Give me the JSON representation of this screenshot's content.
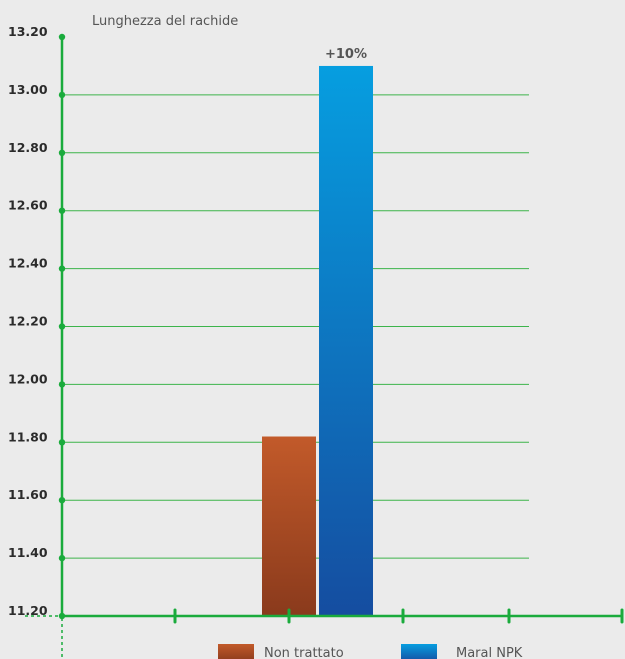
{
  "chart_data": {
    "type": "bar",
    "title": "Lunghezza del rachide",
    "categories": [
      "Non trattato",
      "Maral NPK"
    ],
    "values": [
      11.82,
      13.1
    ],
    "colors": {
      "Non trattato": [
        "#c25a2a",
        "#8a3a1c"
      ],
      "Maral NPK": [
        "#069ee0",
        "#154da0"
      ],
      "axis": "#1aab3c",
      "grid": "#3cb44b"
    },
    "ylim": [
      11.2,
      13.2
    ],
    "yticks": [
      "11.20",
      "11.40",
      "11.60",
      "11.80",
      "12.00",
      "12.20",
      "12.40",
      "12.60",
      "12.80",
      "13.00",
      "13.20"
    ],
    "grid": true,
    "annotation": {
      "text": "+10%",
      "series": "Maral NPK"
    },
    "legend": {
      "position": "bottom",
      "entries": [
        "Non trattato",
        "Maral NPK"
      ]
    }
  }
}
